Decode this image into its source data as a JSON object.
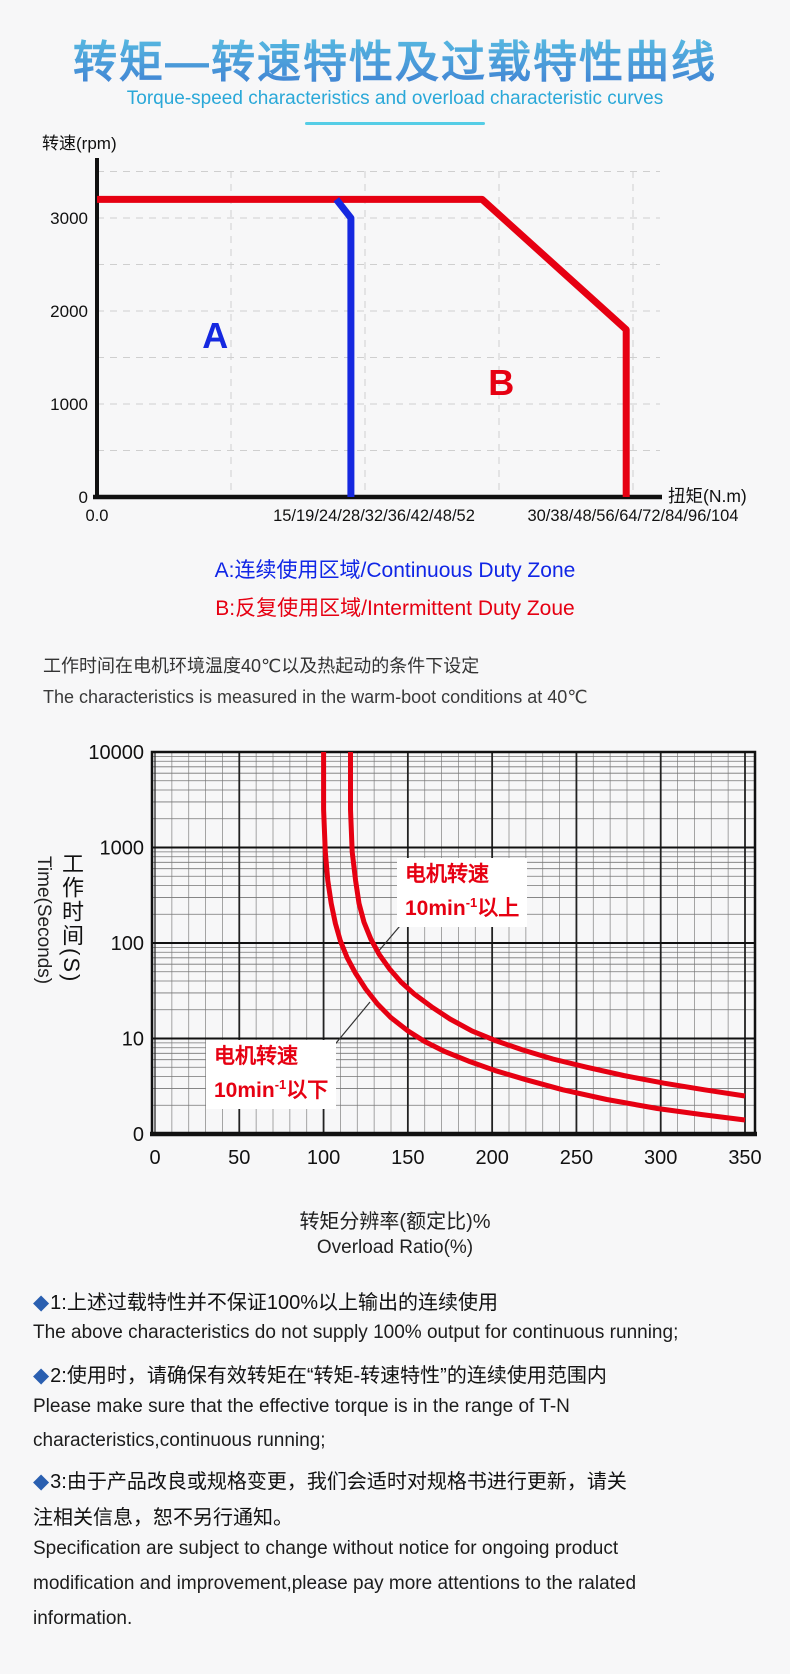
{
  "header": {
    "title": "转矩—转速特性及过载特性曲线",
    "subtitle": "Torque-speed characteristics and overload characteristic curves",
    "accent_color": "#2aa8d8",
    "title_gradient": [
      "#5cc6e4",
      "#3f7ed2"
    ]
  },
  "chart1": {
    "y_axis_label": "转速(rpm)",
    "x_axis_label": "扭矩(N.m)"
  },
  "legend": {
    "a": "A:连续使用区域/Continuous Duty Zone",
    "b": "B:反复使用区域/Intermittent Duty Zoue",
    "a_color": "#1026e6",
    "b_color": "#e60012"
  },
  "conditions": {
    "cn": "工作时间在电机环境温度40℃以及热起动的条件下设定",
    "en": "The characteristics is measured in the warm-boot conditions at 40℃"
  },
  "chart2": {
    "y_axis_label_cn": "工作时间(S)",
    "y_axis_label_en": "Time(Seconds)",
    "x_axis_label_cn": "转矩分辨率(额定比)%",
    "x_axis_label_en": "Overload Ratio(%)",
    "callout_upper": {
      "line1": "电机转速",
      "prefix": "10min",
      "sup": "-1",
      "suffix": "以上"
    },
    "callout_lower": {
      "line1": "电机转速",
      "prefix": "10min",
      "sup": "-1",
      "suffix": "以下"
    }
  },
  "notes": [
    {
      "bullet": "◆",
      "cn": "1:上述过载特性并不保证100%以上输出的连续使用",
      "en": [
        "The above characteristics do not supply 100% output for continuous running;"
      ]
    },
    {
      "bullet": "◆",
      "cn": "2:使用时，请确保有效转矩在“转矩-转速特性”的连续使用范围内",
      "en": [
        "Please make sure that the effective torque is in the range of T-N",
        "characteristics,continuous running;"
      ]
    },
    {
      "bullet": "◆",
      "cn": "3:由于产品改良或规格变更，我们会适时对规格书进行更新，请关",
      "cn2": "注相关信息，恕不另行通知。",
      "en": [
        "Specification are subject to change without notice for ongoing product",
        "modification and improvement,please pay more attentions to the ralated",
        "information."
      ]
    }
  ],
  "chart_data": [
    {
      "type": "line",
      "title": "转矩—转速特性 Torque-speed characteristic",
      "xlabel": "扭矩(N.m)",
      "ylabel": "转速(rpm)",
      "x_tick_labels": [
        {
          "label": "0.0",
          "fx": 0.0
        },
        {
          "label": "15/19/24/28/32/36/42/48/52",
          "fx": 0.492
        },
        {
          "label": "30/38/48/56/64/72/84/96/104",
          "fx": 0.952
        }
      ],
      "y_ticks": [
        0,
        1000,
        2000,
        3000
      ],
      "ylim": [
        0,
        3400
      ],
      "grid": true,
      "series": [
        {
          "name": "B 反复使用区域 Intermittent duty boundary",
          "color": "#e60012",
          "points_fx_rpm": [
            [
              0.0,
              3200
            ],
            [
              0.684,
              3200
            ],
            [
              0.94,
              1800
            ],
            [
              0.94,
              0
            ]
          ]
        },
        {
          "name": "A 连续使用区域 Continuous duty boundary",
          "color": "#1528e0",
          "points_fx_rpm": [
            [
              0.425,
              3200
            ],
            [
              0.451,
              3000
            ],
            [
              0.451,
              0
            ]
          ]
        }
      ],
      "zone_labels": [
        {
          "text": "A",
          "fx": 0.21,
          "rpm": 1730,
          "color": "#1528e0"
        },
        {
          "text": "B",
          "fx": 0.718,
          "rpm": 1225,
          "color": "#e60012"
        }
      ]
    },
    {
      "type": "line",
      "title": "过载特性 Overload characteristic",
      "xlabel": "转矩分辨率(额定比)% / Overload Ratio(%)",
      "ylabel": "工作时间(S) / Time(Seconds)",
      "x_ticks": [
        0,
        50,
        100,
        150,
        200,
        250,
        300,
        350
      ],
      "xlim": [
        0,
        356
      ],
      "y_scale": "log",
      "ylim": [
        1,
        10000
      ],
      "y_tick_labels": [
        {
          "label": "0",
          "value": 1
        },
        {
          "label": "10",
          "value": 10
        },
        {
          "label": "100",
          "value": 100
        },
        {
          "label": "1000",
          "value": 1000
        },
        {
          "label": "10000",
          "value": 10000
        }
      ],
      "grid": "log-graph-paper, minor x every 10, minor y log 2-9",
      "series": [
        {
          "name": "电机转速10min-1以上 (motor speed 10min-1 and above)",
          "color": "#e60012",
          "points_x_seconds": [
            [
              116,
              10000
            ],
            [
              116,
              2500
            ],
            [
              117,
              900
            ],
            [
              119,
              450
            ],
            [
              121,
              260
            ],
            [
              124,
              165
            ],
            [
              128,
              110
            ],
            [
              133,
              76
            ],
            [
              139,
              54
            ],
            [
              146,
              39
            ],
            [
              154,
              29
            ],
            [
              164,
              21.5
            ],
            [
              175,
              16
            ],
            [
              188,
              12
            ],
            [
              202,
              9.5
            ],
            [
              218,
              7.6
            ],
            [
              236,
              6.1
            ],
            [
              256,
              5.0
            ],
            [
              278,
              4.1
            ],
            [
              302,
              3.4
            ],
            [
              326,
              2.9
            ],
            [
              350,
              2.5
            ]
          ]
        },
        {
          "name": "电机转速10min-1以下 (motor speed below 10min-1)",
          "color": "#e60012",
          "points_x_seconds": [
            [
              100,
              10000
            ],
            [
              100,
              2500
            ],
            [
              101,
              900
            ],
            [
              102.5,
              450
            ],
            [
              104.5,
              260
            ],
            [
              107,
              160
            ],
            [
              110,
              105
            ],
            [
              114,
              70
            ],
            [
              119,
              48
            ],
            [
              125,
              33
            ],
            [
              132,
              23
            ],
            [
              140,
              16.5
            ],
            [
              150,
              12
            ],
            [
              160,
              9.3
            ],
            [
              172,
              7.3
            ],
            [
              186,
              5.8
            ],
            [
              202,
              4.6
            ],
            [
              220,
              3.7
            ],
            [
              242,
              2.9
            ],
            [
              268,
              2.3
            ],
            [
              298,
              1.85
            ],
            [
              324,
              1.6
            ],
            [
              350,
              1.4
            ]
          ]
        }
      ]
    }
  ]
}
